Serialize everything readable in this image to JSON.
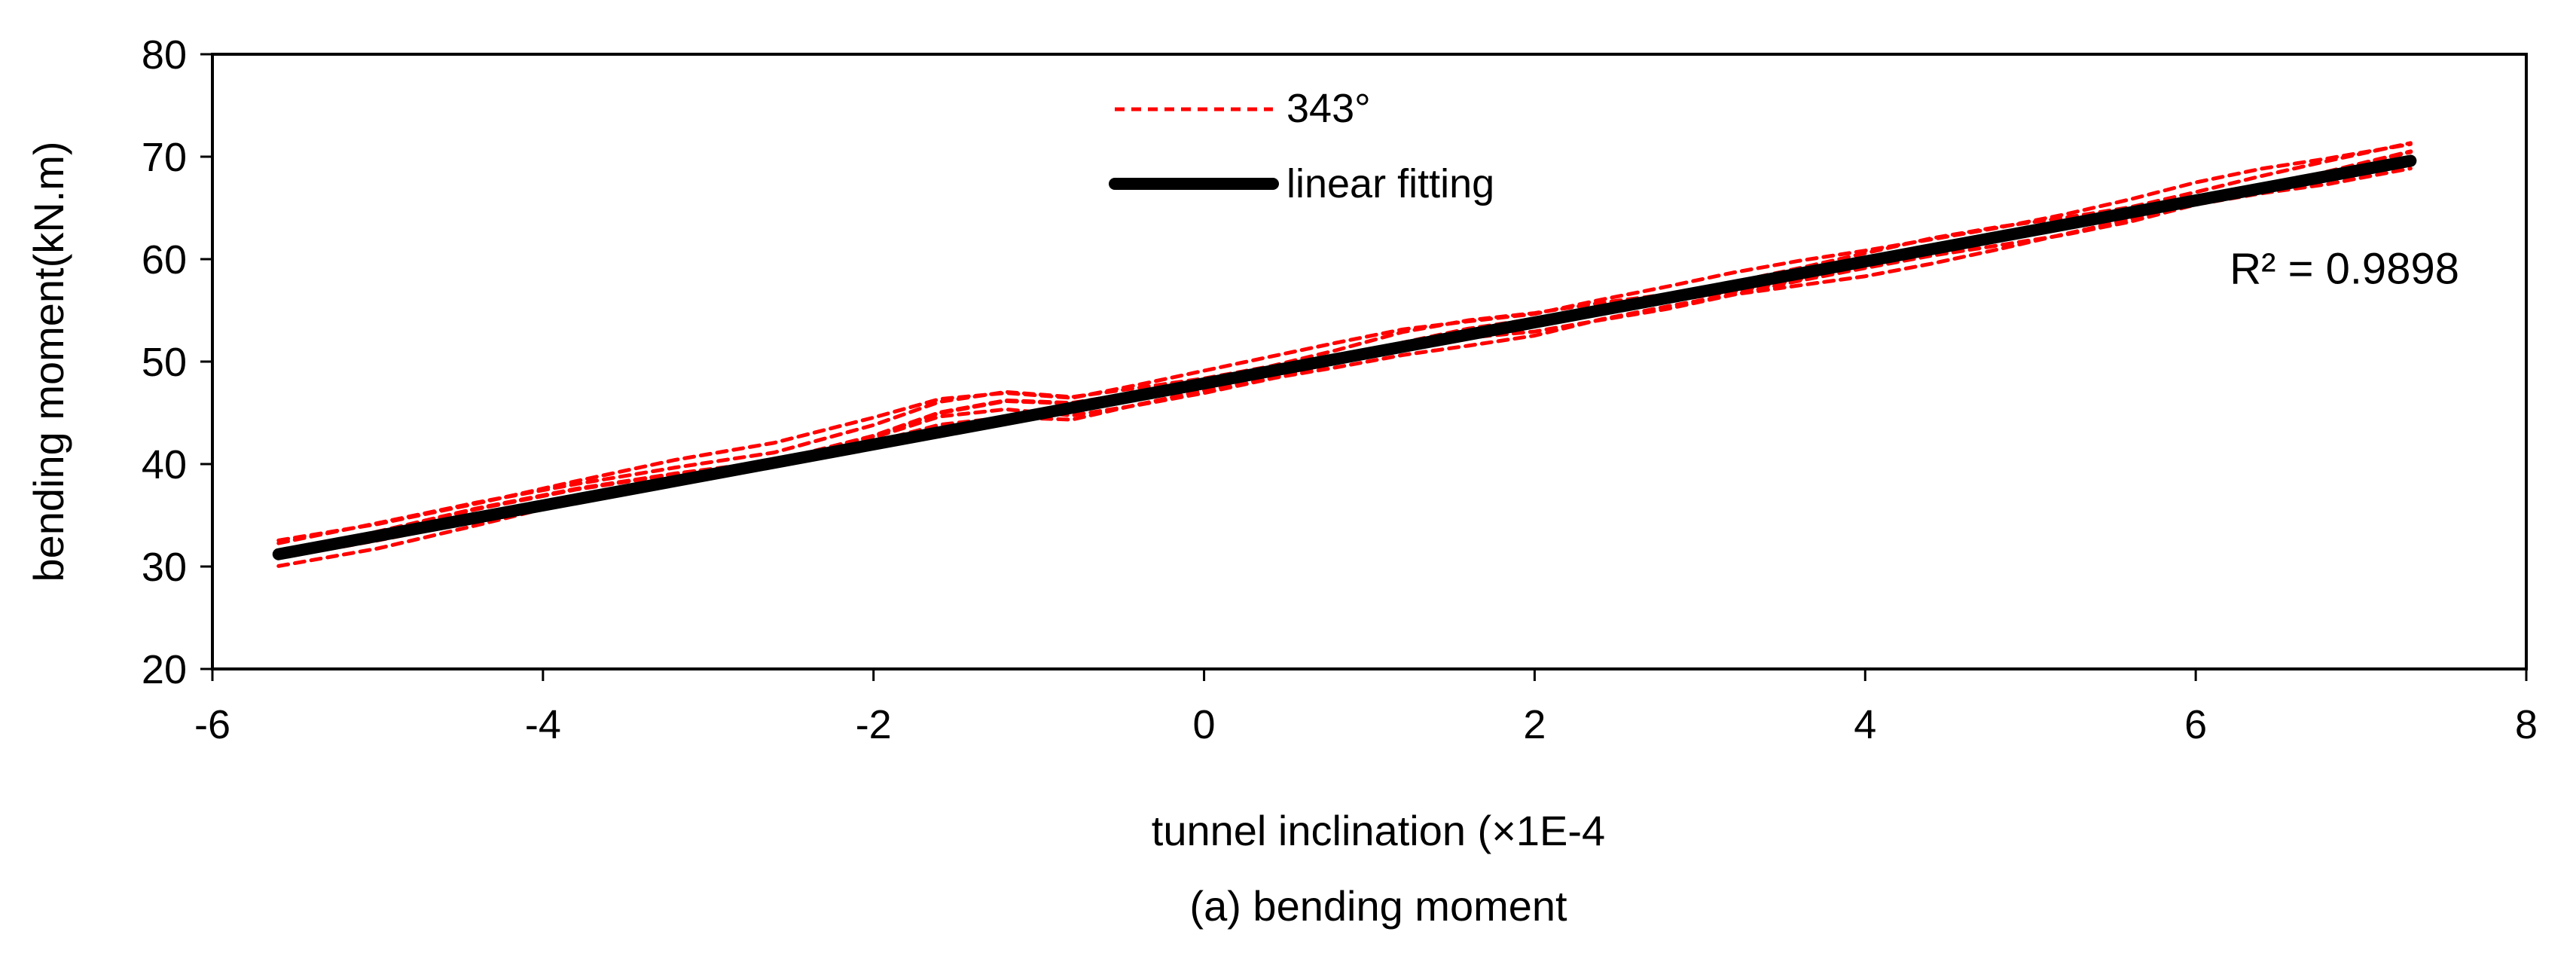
{
  "chart_data": {
    "type": "line",
    "title": "",
    "caption": "(a)  bending moment",
    "xlabel": "tunnel inclination  (×1E-4",
    "ylabel": "bending moment(kN.m)",
    "xlim": [
      -6,
      8
    ],
    "ylim": [
      20,
      80
    ],
    "x_ticks": [
      -6,
      -4,
      -2,
      0,
      2,
      4,
      6,
      8
    ],
    "y_ticks": [
      20,
      30,
      40,
      50,
      60,
      70,
      80
    ],
    "x_tick_labels": [
      "-6",
      "-4",
      "-2",
      "0",
      "2",
      "4",
      "6",
      "8"
    ],
    "y_tick_labels": [
      "20",
      "30",
      "40",
      "50",
      "60",
      "70",
      "80"
    ],
    "grid": false,
    "legend_position": "top-center",
    "series": [
      {
        "name": "343°",
        "style": "dashed",
        "color": "#ff0000",
        "x": [
          -5.6,
          -5.0,
          -4.4,
          -3.8,
          -3.2,
          -2.6,
          -2.0,
          -1.6,
          -1.2,
          -0.8,
          -0.4,
          0.0,
          0.4,
          0.8,
          1.2,
          1.6,
          2.0,
          2.4,
          2.8,
          3.2,
          3.6,
          4.0,
          4.4,
          4.8,
          5.2,
          5.6,
          6.0,
          6.4,
          6.8,
          7.3
        ],
        "y": [
          31.2,
          33.1,
          35.3,
          37.4,
          39.2,
          40.6,
          43.0,
          45.0,
          45.9,
          45.6,
          46.8,
          47.9,
          49.0,
          50.3,
          51.8,
          52.9,
          53.8,
          55.1,
          56.1,
          57.2,
          58.3,
          59.5,
          60.9,
          62.2,
          63.4,
          64.6,
          66.0,
          67.3,
          68.5,
          70.2
        ],
        "band_offsets": [
          0.0,
          0.8,
          -0.7,
          1.2,
          -1.0
        ]
      },
      {
        "name": "linear fitting",
        "style": "solid",
        "color": "#000000",
        "x": [
          -5.6,
          7.3
        ],
        "y": [
          31.2,
          69.6
        ]
      }
    ],
    "annotations": [
      {
        "text": "R² = 0.9898",
        "x": 6.9,
        "y": 57.6
      }
    ]
  }
}
